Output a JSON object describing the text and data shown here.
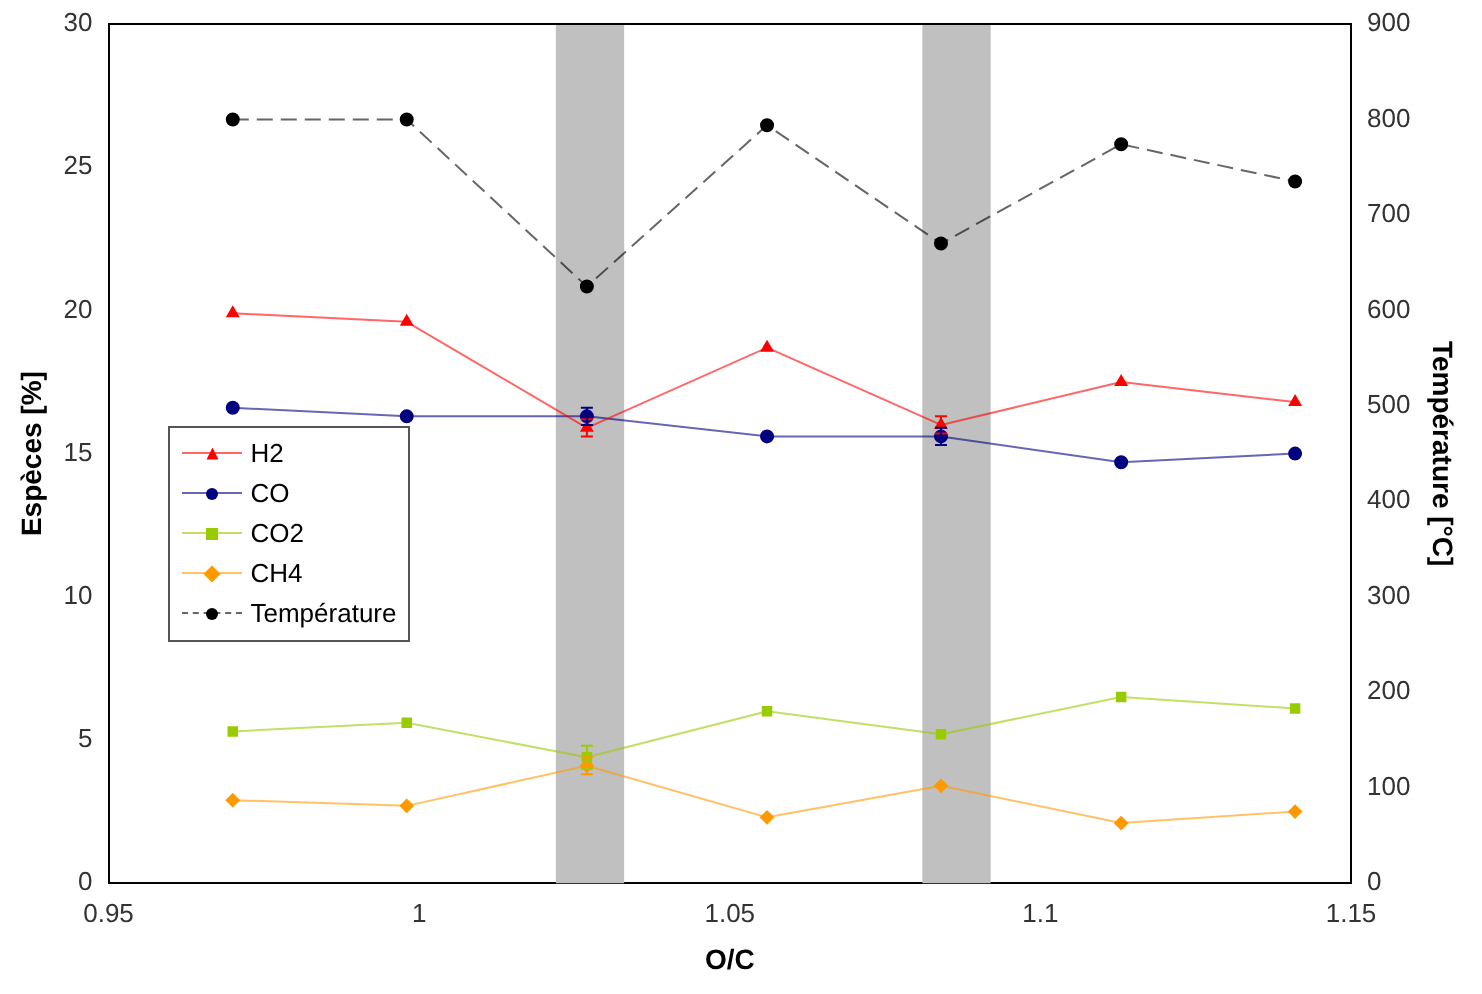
{
  "chart_data": {
    "type": "line",
    "xlabel": "O/C",
    "ylabel": "Espèces [%]",
    "y2label": "Température [°C]",
    "x": [
      0.97,
      0.998,
      1.027,
      1.056,
      1.084,
      1.113,
      1.141
    ],
    "xlim": [
      0.95,
      1.15
    ],
    "xticks": [
      0.95,
      1,
      1.05,
      1.1,
      1.15
    ],
    "ylim": [
      0,
      30
    ],
    "yticks": [
      0,
      5,
      10,
      15,
      20,
      25,
      30
    ],
    "y2lim": [
      0,
      900
    ],
    "y2ticks": [
      0,
      100,
      200,
      300,
      400,
      500,
      600,
      700,
      800,
      900
    ],
    "grid": false,
    "legend": "left",
    "bands": [
      {
        "axis": "x",
        "from": 1.022,
        "to": 1.033,
        "color": "#c0c0c0"
      },
      {
        "axis": "x",
        "from": 1.081,
        "to": 1.092,
        "color": "#c0c0c0"
      }
    ],
    "series": [
      {
        "name": "H2",
        "color": "#ff0000",
        "marker": "triangle",
        "values": [
          19.9,
          19.6,
          15.9,
          18.7,
          16.0,
          17.5,
          16.8
        ],
        "errors": [
          null,
          null,
          0.3,
          null,
          0.3,
          null,
          null
        ]
      },
      {
        "name": "CO",
        "color": "#000080",
        "marker": "circle",
        "values": [
          16.6,
          16.3,
          16.3,
          15.6,
          15.6,
          14.7,
          15.0
        ],
        "errors": [
          null,
          null,
          0.3,
          null,
          0.3,
          null,
          null
        ]
      },
      {
        "name": "CO2",
        "color": "#99cc00",
        "marker": "square",
        "values": [
          5.3,
          5.6,
          4.4,
          6.0,
          5.2,
          6.5,
          6.1
        ],
        "errors": [
          null,
          null,
          0.4,
          null,
          null,
          null,
          null
        ]
      },
      {
        "name": "CH4",
        "color": "#ff9900",
        "marker": "diamond",
        "values": [
          2.9,
          2.7,
          4.1,
          2.3,
          3.4,
          2.1,
          2.5
        ],
        "errors": [
          null,
          null,
          0.3,
          null,
          null,
          null,
          null
        ]
      },
      {
        "name": "Température",
        "color": "#000000",
        "marker": "circle",
        "line_style": "dashed",
        "axis": "y2",
        "values": [
          800,
          800,
          625,
          794,
          670,
          774,
          735
        ]
      }
    ]
  }
}
